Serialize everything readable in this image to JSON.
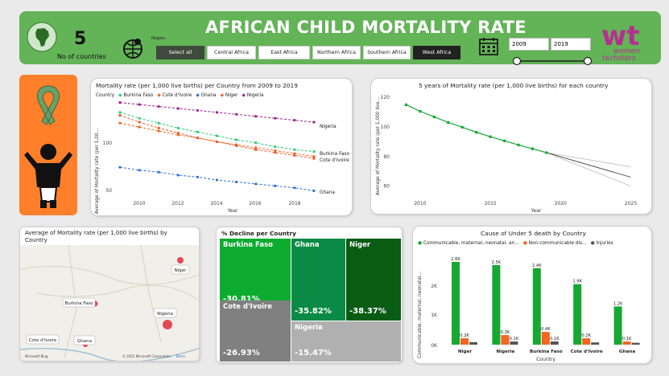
{
  "header": {
    "title": "AFRICAN CHILD MORTALITY RATE",
    "count_value": "5",
    "count_label": "No of countries",
    "region_label": "Region",
    "region_buttons": [
      "Select all",
      "Central Africa",
      "East Africa",
      "Northern Africa",
      "Southern Africa",
      "West Africa"
    ],
    "selected_region": "West Africa",
    "year_start": "2009",
    "year_end": "2019",
    "logo_text": "wt",
    "logo_sub1": "women",
    "logo_sub2": "techsters"
  },
  "colors": {
    "header_green": "#63b357",
    "burkina": "#2ecc71",
    "cote": "#f26522",
    "ghana": "#2f6fd8",
    "niger": "#f05a28",
    "nigeria": "#9b1f8c",
    "orange_panel": "#ff7f2a"
  },
  "line_chart": {
    "title": "Mortality rate (per 1,000 live births) per Country from 2009 to 2019",
    "legend_title": "Country",
    "ylabel": "Average of Mortality rate (per 1,00...",
    "xlabel": "Year",
    "yticks": [
      "100",
      "50"
    ],
    "xticks": [
      "2010",
      "2012",
      "2014",
      "2016",
      "2018"
    ],
    "end_labels": [
      "Nigeria",
      "Burkina Faso",
      "Cote d'Ivoire",
      "Ghana"
    ]
  },
  "forecast_chart": {
    "title": "5 years of Mortality rate (per 1,000 live births) for each country",
    "ylabel": "Average of Mortality rate (per 1,000 live...",
    "xlabel": "Year",
    "yticks": [
      "120",
      "100",
      "80",
      "60"
    ],
    "xticks": [
      "2010",
      "2015",
      "2020",
      "2025"
    ]
  },
  "map": {
    "title": "Average of Mortality rate (per 1,000 live births) by Country",
    "labels": [
      "Niger",
      "Burkina Faso",
      "Nigeria",
      "Cote d'Ivoire",
      "Ghana"
    ],
    "attribution": "© 2022 Microsoft Corporation",
    "terms": "Terms",
    "brand": "Microsoft Bing"
  },
  "treemap": {
    "title": "% Decline per Country",
    "tiles": [
      {
        "name": "Burkina Faso",
        "value": "-30.81%"
      },
      {
        "name": "Ghana",
        "value": "-35.82%"
      },
      {
        "name": "Niger",
        "value": "-38.37%"
      },
      {
        "name": "Cote d'Ivoire",
        "value": "-26.93%"
      },
      {
        "name": "Nigeria",
        "value": "-15.47%"
      }
    ]
  },
  "cause_chart": {
    "title": "Cause of Under 5 death by Country",
    "legend": [
      "Communicable, maternal, neonatal, an...",
      "Non-communicable dis...",
      "Injuries"
    ],
    "ylabel": "Communicable, maternal, neonatal...",
    "xlabel": "Country",
    "yticks": [
      "2K",
      "1K",
      "0K"
    ]
  },
  "chart_data": [
    {
      "type": "line",
      "title": "Mortality rate (per 1,000 live births) per Country from 2009 to 2019",
      "xlabel": "Year",
      "ylabel": "Average of Mortality rate (per 1,00...",
      "x": [
        2009,
        2010,
        2011,
        2012,
        2013,
        2014,
        2015,
        2016,
        2017,
        2018,
        2019
      ],
      "ylim": [
        40,
        140
      ],
      "series": [
        {
          "name": "Burkina Faso",
          "values": [
            127,
            121,
            116,
            111,
            107,
            103,
            99,
            96,
            92,
            89,
            87
          ]
        },
        {
          "name": "Cote d'Ivoire",
          "values": [
            116,
            112,
            108,
            104,
            101,
            97,
            94,
            91,
            88,
            85,
            82
          ]
        },
        {
          "name": "Ghana",
          "values": [
            71,
            68,
            66,
            63,
            61,
            58,
            56,
            54,
            52,
            50,
            47
          ]
        },
        {
          "name": "Niger",
          "values": [
            124,
            117,
            111,
            106,
            101,
            97,
            93,
            89,
            86,
            83,
            80
          ]
        },
        {
          "name": "Nigeria",
          "values": [
            137,
            135,
            133,
            131,
            129,
            127,
            125,
            123,
            121,
            119,
            117
          ]
        }
      ]
    },
    {
      "type": "line",
      "title": "5 years of Mortality rate (per 1,000 live births) for each country",
      "xlabel": "Year",
      "ylabel": "Average of Mortality rate (per 1,000 live...",
      "x": [
        2009,
        2010,
        2011,
        2012,
        2013,
        2014,
        2015,
        2016,
        2017,
        2018,
        2019
      ],
      "xlim": [
        2008,
        2026
      ],
      "ylim": [
        50,
        125
      ],
      "series": [
        {
          "name": "Average",
          "values": [
            115,
            110.6,
            106.8,
            103,
            99.8,
            96.4,
            93.4,
            90.6,
            87.8,
            85.2,
            82.6
          ]
        }
      ],
      "forecast": {
        "x": [
          2019,
          2025
        ],
        "mid": [
          82.6,
          66
        ],
        "upper": [
          82.6,
          73
        ],
        "lower": [
          82.6,
          60
        ]
      }
    },
    {
      "type": "bar",
      "title": "Cause of Under 5 death by Country",
      "xlabel": "Country",
      "ylabel": "Communicable, maternal, neonatal...",
      "categories": [
        "Niger",
        "Nigeria",
        "Burkina Faso",
        "Cote d'Ivoire",
        "Ghana"
      ],
      "ylim": [
        0,
        2800
      ],
      "series": [
        {
          "name": "Communicable, maternal, neonatal, an...",
          "values": [
            2600,
            2500,
            2400,
            1900,
            1200
          ],
          "labels": [
            "2.6K",
            "2.5K",
            "2.4K",
            "1.9K",
            "1.2K"
          ]
        },
        {
          "name": "Non-communicable dis...",
          "values": [
            200,
            300,
            400,
            200,
            100
          ],
          "labels": [
            "0.2K",
            "0.3K",
            "0.4K",
            "0.2K",
            "0.1K"
          ]
        },
        {
          "name": "Injuries",
          "values": [
            80,
            100,
            100,
            70,
            60
          ],
          "labels": [
            "",
            "0.1K",
            "0.1K",
            "",
            ""
          ]
        }
      ]
    }
  ]
}
